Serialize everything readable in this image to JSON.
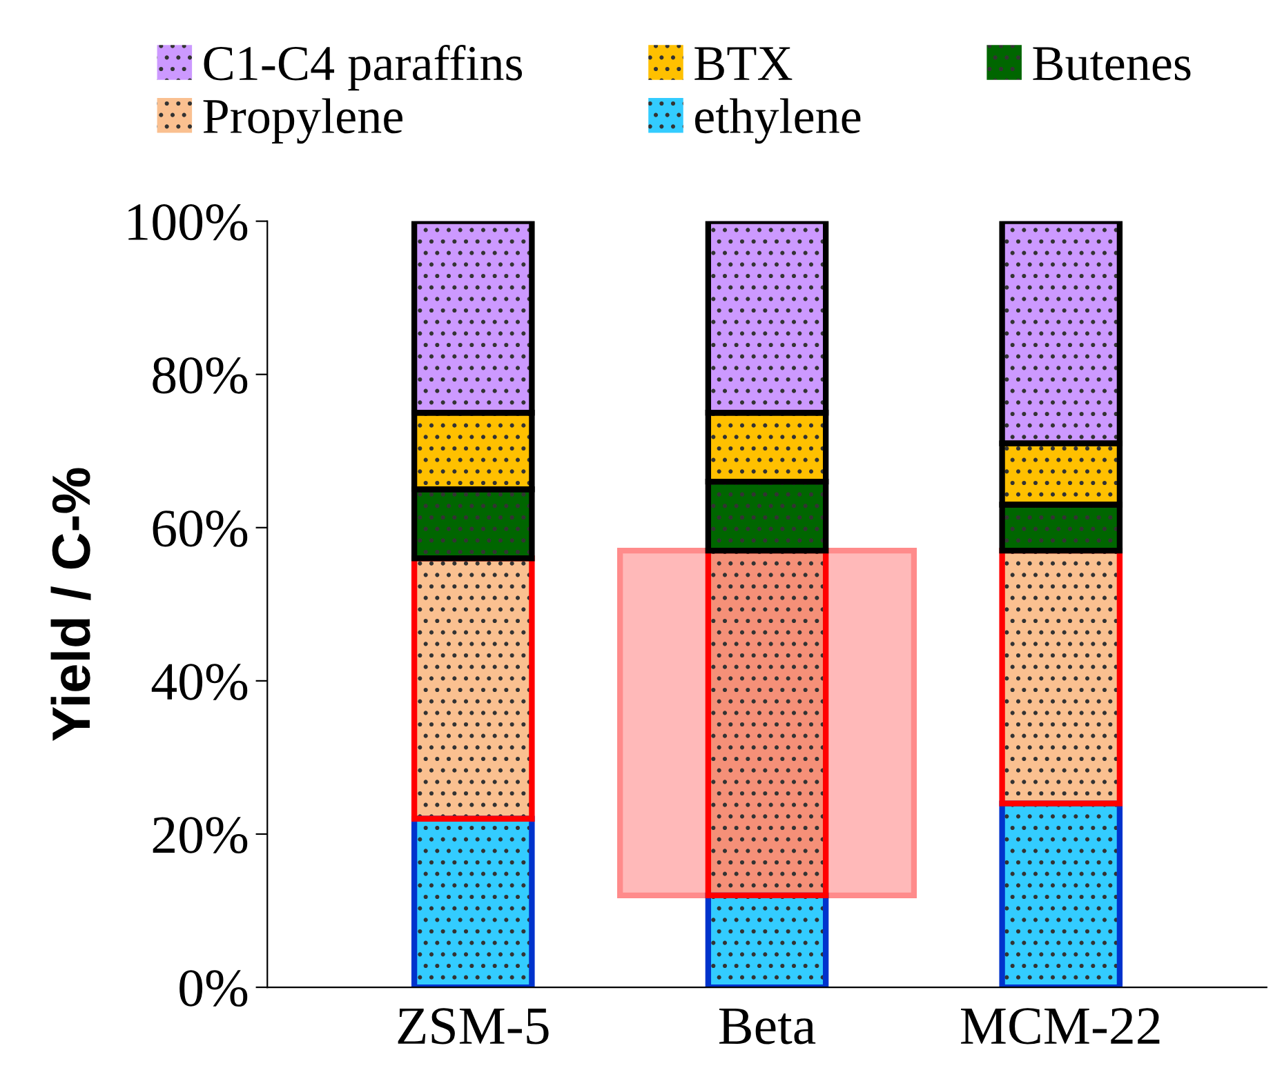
{
  "chart_data": {
    "type": "bar",
    "stacked": true,
    "ylabel": "Yield / C-%",
    "categories": [
      "ZSM-5",
      "Beta",
      "MCM-22"
    ],
    "series": [
      {
        "name": "ethylene",
        "color": "#33ccff",
        "values": [
          22,
          12,
          24
        ]
      },
      {
        "name": "Propylene",
        "color": "#fac090",
        "colors": [
          "#fac090",
          "#f59078",
          "#fac090"
        ],
        "values": [
          34,
          45,
          33
        ]
      },
      {
        "name": "Butenes",
        "color": "#006600",
        "values": [
          9,
          9,
          6
        ]
      },
      {
        "name": "BTX",
        "color": "#ffc000",
        "values": [
          10,
          9,
          8
        ]
      },
      {
        "name": "C1-C4 paraffins",
        "color": "#cc99ff",
        "values": [
          25,
          25,
          29
        ]
      }
    ],
    "ylim": [
      0,
      100
    ],
    "yticks": [
      {
        "value": 0,
        "label": "0%"
      },
      {
        "value": 20,
        "label": "20%"
      },
      {
        "value": 40,
        "label": "40%"
      },
      {
        "value": 60,
        "label": "60%"
      },
      {
        "value": 80,
        "label": "80%"
      },
      {
        "value": 100,
        "label": "100%"
      }
    ],
    "grid": false,
    "legend": "top"
  }
}
